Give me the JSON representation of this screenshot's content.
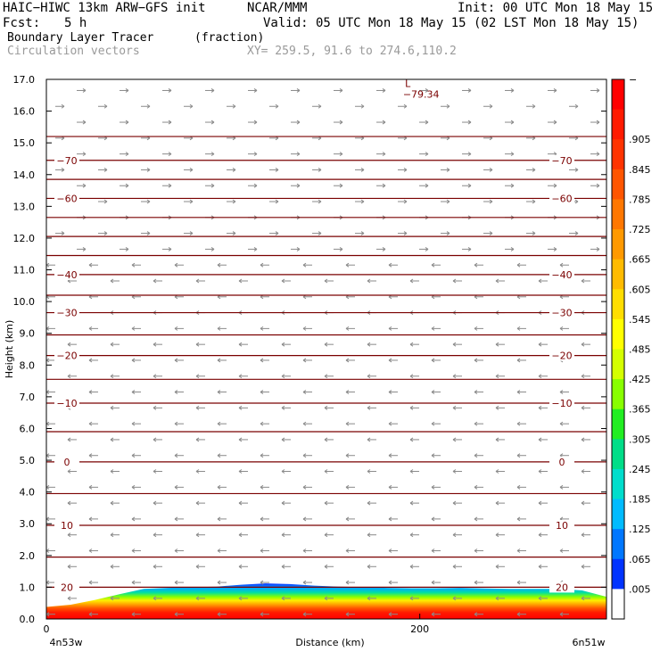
{
  "header": {
    "model": "HAIC−HIWC 13km ARW−GFS init",
    "org": "NCAR/MMM",
    "init": "Init: 00 UTC Mon 18 May 15",
    "fcst_label": "Fcst:",
    "fcst_value": "5 h",
    "valid": "Valid: 05 UTC Mon 18 May 15 (02 LST Mon 18 May 15)",
    "field1": "Boundary Layer Tracer",
    "field1_units": "(fraction)",
    "field2": "Circulation vectors",
    "xy": "XY= 259.5, 91.6 to 274.6,110.2"
  },
  "chart_data": {
    "type": "heatmap",
    "ylabel": "Height (km)",
    "xlabel": "Distance (km)",
    "ylim": [
      0,
      17
    ],
    "xlim": [
      0,
      300
    ],
    "y_ticks": [
      "0.0",
      "1.0",
      "2.0",
      "3.0",
      "4.0",
      "5.0",
      "6.0",
      "7.0",
      "8.0",
      "9.0",
      "10.0",
      "11.0",
      "12.0",
      "13.0",
      "14.0",
      "15.0",
      "16.0",
      "17.0"
    ],
    "x_ticks": [
      {
        "value": 0,
        "label": "0"
      },
      {
        "value": 200,
        "label": "200"
      }
    ],
    "x_endpoints": {
      "left": "4n53w",
      "right": "6n51w"
    },
    "colorbar": {
      "labels": [
        "−",
        ".905",
        ".845",
        ".785",
        ".725",
        ".665",
        ".605",
        ".545",
        ".485",
        ".425",
        ".365",
        ".305",
        ".245",
        ".185",
        ".125",
        ".065",
        ".005"
      ],
      "colors": [
        "#ff0000",
        "#ff1a00",
        "#ff3300",
        "#ff5500",
        "#ff7700",
        "#ff9900",
        "#ffbb00",
        "#ffdd00",
        "#ffff00",
        "#d4ff00",
        "#88ff00",
        "#22ee22",
        "#00dd88",
        "#00ddcc",
        "#00bbff",
        "#0077ff",
        "#0033ff",
        "#ffffff"
      ]
    },
    "contours": [
      {
        "level": 20,
        "label": "20",
        "y": 1.0
      },
      {
        "level": 15,
        "y": 1.95
      },
      {
        "level": 10,
        "label": "10",
        "y": 2.95
      },
      {
        "level": 5,
        "y": 3.95
      },
      {
        "level": 0,
        "label": "0",
        "y": 4.95
      },
      {
        "level": -5,
        "y": 5.9
      },
      {
        "level": -10,
        "label": "−10",
        "y": 6.8
      },
      {
        "level": -15,
        "y": 7.55
      },
      {
        "level": -20,
        "label": "−20",
        "y": 8.3
      },
      {
        "level": -25,
        "y": 8.95
      },
      {
        "level": -30,
        "label": "−30",
        "y": 9.65
      },
      {
        "level": -35,
        "y": 10.2
      },
      {
        "level": -40,
        "label": "−40",
        "y": 10.85
      },
      {
        "level": -45,
        "y": 11.45
      },
      {
        "level": -50,
        "y": 12.05
      },
      {
        "level": -55,
        "y": 12.65
      },
      {
        "level": -60,
        "label": "−60",
        "y": 13.25
      },
      {
        "level": -65,
        "y": 13.85
      },
      {
        "level": -70,
        "label": "−70",
        "y": 14.45
      },
      {
        "level": -75,
        "y": 15.2
      }
    ],
    "low_marker": {
      "symbol": "L",
      "value": "−79.34",
      "x": 195,
      "y": 16.7
    },
    "tracer_top_km": [
      0.38,
      0.45,
      0.6,
      0.78,
      0.95,
      0.98,
      1.0,
      1.02,
      1.08,
      1.12,
      1.1,
      1.05,
      1.02,
      1.0,
      0.98,
      0.97,
      0.97,
      0.98,
      0.96,
      0.95,
      0.95,
      0.95,
      0.9,
      0.7
    ]
  }
}
